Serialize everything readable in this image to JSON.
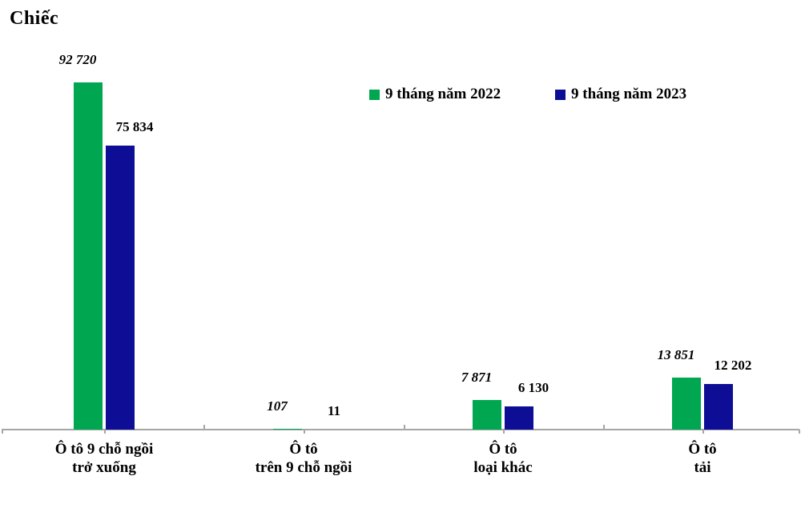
{
  "page": {
    "background": "#FFFFFF"
  },
  "chart_data": {
    "type": "bar",
    "unit_label": "Chiếc",
    "categories": [
      {
        "lines": [
          "Ô tô 9 chỗ ngồi",
          "trở xuống"
        ]
      },
      {
        "lines": [
          "Ô tô",
          "trên 9 chỗ ngồi"
        ]
      },
      {
        "lines": [
          "Ô tô",
          "loại khác"
        ]
      },
      {
        "lines": [
          "Ô tô",
          "tải"
        ]
      }
    ],
    "series": [
      {
        "name": "9 tháng năm 2022",
        "color": "#00A750",
        "values": [
          92720,
          107,
          7871,
          13851
        ],
        "value_labels": [
          "92 720",
          "107",
          "7 871",
          "13 851"
        ],
        "label_italic": true
      },
      {
        "name": "9 tháng năm 2023",
        "color": "#0D0D96",
        "values": [
          75834,
          11,
          6130,
          12202
        ],
        "value_labels": [
          "75 834",
          "11",
          "6 130",
          "12 202"
        ],
        "label_italic": false
      }
    ],
    "ylim": [
      0,
      100000
    ],
    "grid": false,
    "legend_position": "top-center",
    "axis_color": "#A6A6A6"
  }
}
